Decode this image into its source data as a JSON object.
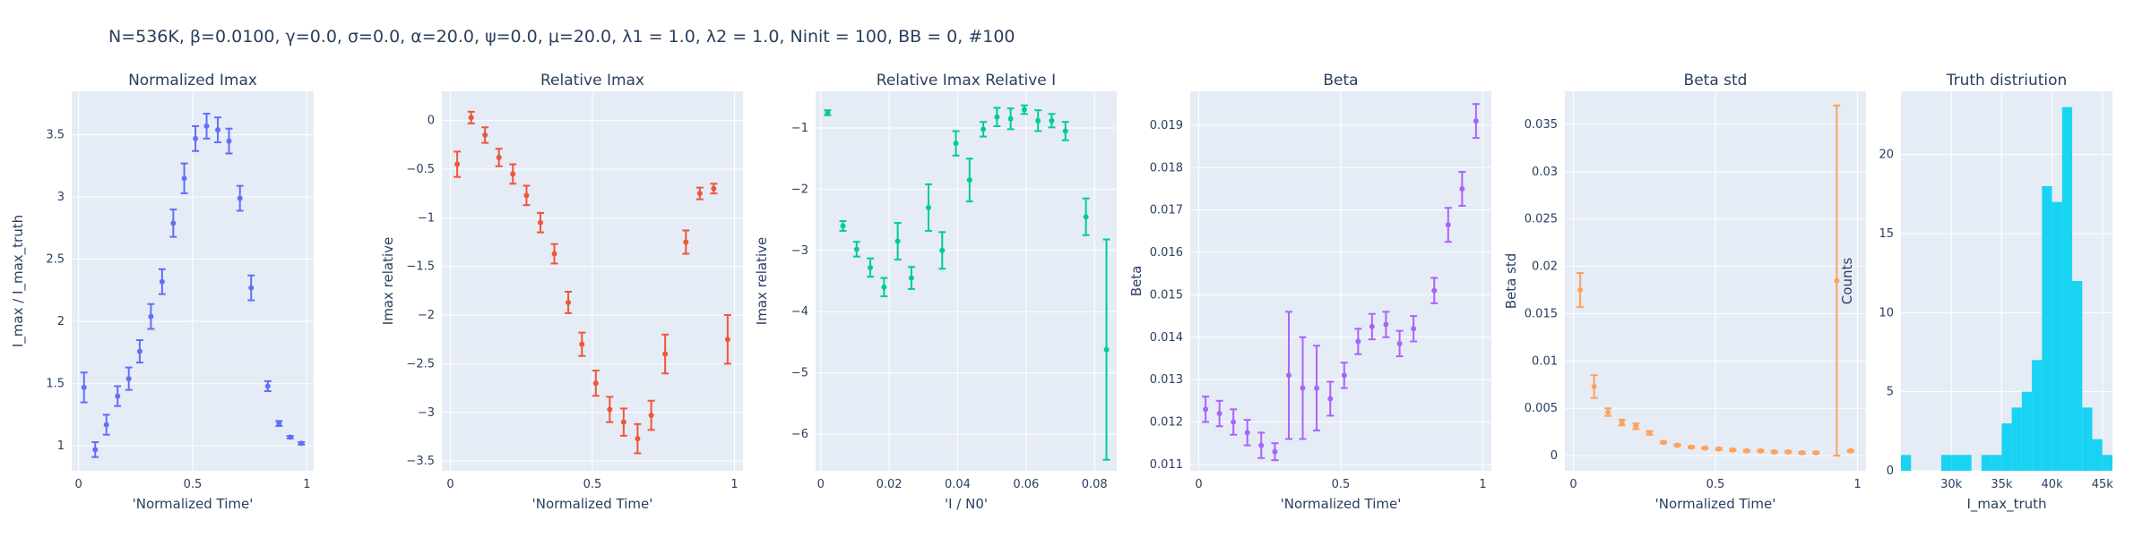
{
  "title": "N=536K, β=0.0100, γ=0.0, σ=0.0,  α=20.0, ψ=0.0, μ=20.0, λ1 = 1.0, λ2 = 1.0, Ninit = 100, BB = 0, #100",
  "chart_data": [
    {
      "type": "scatter",
      "title": "Normalized Imax",
      "xlabel": "'Normalized Time'",
      "ylabel": "I_max / I_max_truth",
      "xlim": [
        -0.03,
        1.03
      ],
      "ylim": [
        0.8,
        3.85
      ],
      "xticks": [
        0,
        0.5,
        1
      ],
      "xticklabels": [
        "0",
        "0.5",
        "1"
      ],
      "yticks": [
        1,
        1.5,
        2,
        2.5,
        3,
        3.5
      ],
      "yticklabels": [
        "1",
        "1.5",
        "2",
        "2.5",
        "3",
        "3.5"
      ],
      "color": "#636efa",
      "grid": true,
      "series": [
        {
          "x": [
            0.024,
            0.073,
            0.122,
            0.171,
            0.22,
            0.268,
            0.317,
            0.366,
            0.415,
            0.463,
            0.512,
            0.561,
            0.61,
            0.659,
            0.707,
            0.756,
            0.829,
            0.878,
            0.927,
            0.976
          ],
          "y": [
            1.47,
            0.97,
            1.17,
            1.4,
            1.54,
            1.76,
            2.04,
            2.32,
            2.79,
            3.15,
            3.47,
            3.57,
            3.54,
            3.45,
            2.99,
            2.27,
            1.48,
            1.18,
            1.07,
            1.02
          ],
          "err": [
            0.12,
            0.06,
            0.08,
            0.08,
            0.09,
            0.09,
            0.1,
            0.1,
            0.11,
            0.12,
            0.1,
            0.1,
            0.1,
            0.1,
            0.1,
            0.1,
            0.04,
            0.02,
            0.01,
            0.01
          ]
        }
      ]
    },
    {
      "type": "scatter",
      "title": "Relative Imax",
      "xlabel": "'Normalized Time'",
      "ylabel": "Imax relative",
      "xlim": [
        -0.03,
        1.03
      ],
      "ylim": [
        -3.6,
        0.3
      ],
      "xticks": [
        0,
        0.5,
        1
      ],
      "xticklabels": [
        "0",
        "0.5",
        "1"
      ],
      "yticks": [
        0,
        -0.5,
        -1,
        -1.5,
        -2,
        -2.5,
        -3,
        -3.5
      ],
      "yticklabels": [
        "0",
        "−0.5",
        "−1",
        "−1.5",
        "−2",
        "−2.5",
        "−3",
        "−3.5"
      ],
      "color": "#ef553b",
      "grid": true,
      "series": [
        {
          "x": [
            0.024,
            0.073,
            0.122,
            0.171,
            0.22,
            0.268,
            0.317,
            0.366,
            0.415,
            0.463,
            0.512,
            0.561,
            0.61,
            0.659,
            0.707,
            0.756,
            0.829,
            0.878,
            0.927,
            0.976
          ],
          "y": [
            -0.45,
            0.03,
            -0.15,
            -0.38,
            -0.55,
            -0.77,
            -1.05,
            -1.37,
            -1.87,
            -2.3,
            -2.7,
            -2.97,
            -3.1,
            -3.27,
            -3.03,
            -2.4,
            -1.25,
            -0.75,
            -0.7,
            -2.25
          ],
          "err": [
            0.13,
            0.06,
            0.08,
            0.09,
            0.1,
            0.1,
            0.1,
            0.1,
            0.11,
            0.12,
            0.13,
            0.13,
            0.14,
            0.15,
            0.15,
            0.2,
            0.12,
            0.06,
            0.05,
            0.25
          ]
        }
      ]
    },
    {
      "type": "scatter",
      "title": "Relative Imax Relative I",
      "xlabel": "'I / N0'",
      "ylabel": "Imax relative",
      "xlim": [
        -0.0015,
        0.0865
      ],
      "ylim": [
        -6.6,
        -0.4
      ],
      "xticks": [
        0,
        0.02,
        0.04,
        0.06,
        0.08
      ],
      "xticklabels": [
        "0",
        "0.02",
        "0.04",
        "0.06",
        "0.08"
      ],
      "yticks": [
        -1,
        -2,
        -3,
        -4,
        -5,
        -6
      ],
      "yticklabels": [
        "−1",
        "−2",
        "−3",
        "−4",
        "−5",
        "−6"
      ],
      "color": "#00cc96",
      "grid": true,
      "series": [
        {
          "x": [
            0.002,
            0.0065,
            0.0105,
            0.0145,
            0.0185,
            0.0225,
            0.0265,
            0.0315,
            0.0355,
            0.0395,
            0.0435,
            0.0475,
            0.0515,
            0.0555,
            0.0595,
            0.0635,
            0.0675,
            0.0715,
            0.0775,
            0.0835
          ],
          "y": [
            -0.75,
            -2.6,
            -2.98,
            -3.28,
            -3.6,
            -2.85,
            -3.45,
            -2.3,
            -3.0,
            -1.25,
            -1.85,
            -1.02,
            -0.82,
            -0.85,
            -0.7,
            -0.88,
            -0.88,
            -1.05,
            -2.45,
            -4.62
          ],
          "err": [
            0.04,
            0.08,
            0.12,
            0.15,
            0.15,
            0.3,
            0.18,
            0.38,
            0.3,
            0.2,
            0.35,
            0.12,
            0.15,
            0.17,
            0.07,
            0.17,
            0.11,
            0.15,
            0.3,
            1.8
          ]
        }
      ]
    },
    {
      "type": "scatter",
      "title": "Beta",
      "xlabel": "'Normalized Time'",
      "ylabel": "Beta",
      "xlim": [
        -0.03,
        1.03
      ],
      "ylim": [
        0.01085,
        0.0198
      ],
      "xticks": [
        0,
        0.5,
        1
      ],
      "xticklabels": [
        "0",
        "0.5",
        "1"
      ],
      "yticks": [
        0.011,
        0.012,
        0.013,
        0.014,
        0.015,
        0.016,
        0.017,
        0.018,
        0.019
      ],
      "yticklabels": [
        "0.011",
        "0.012",
        "0.013",
        "0.014",
        "0.015",
        "0.016",
        "0.017",
        "0.018",
        "0.019"
      ],
      "color": "#ab63fa",
      "grid": true,
      "series": [
        {
          "x": [
            0.024,
            0.073,
            0.122,
            0.171,
            0.22,
            0.268,
            0.317,
            0.366,
            0.415,
            0.463,
            0.512,
            0.561,
            0.61,
            0.659,
            0.707,
            0.756,
            0.829,
            0.878,
            0.927,
            0.976
          ],
          "y": [
            0.0123,
            0.0122,
            0.012,
            0.01175,
            0.01145,
            0.0113,
            0.0131,
            0.0128,
            0.0128,
            0.01255,
            0.0131,
            0.0139,
            0.01425,
            0.0143,
            0.01385,
            0.0142,
            0.0151,
            0.01665,
            0.0175,
            0.0191
          ],
          "err": [
            0.0003,
            0.0003,
            0.0003,
            0.0003,
            0.0003,
            0.0002,
            0.0015,
            0.0012,
            0.001,
            0.0004,
            0.0003,
            0.0003,
            0.0003,
            0.0003,
            0.0003,
            0.0003,
            0.0003,
            0.0004,
            0.0004,
            0.0004
          ]
        }
      ]
    },
    {
      "type": "scatter",
      "title": "Beta std",
      "xlabel": "'Normalized Time'",
      "ylabel": "Beta std",
      "xlim": [
        -0.03,
        1.03
      ],
      "ylim": [
        -0.0016,
        0.0385
      ],
      "xticks": [
        0,
        0.5,
        1
      ],
      "xticklabels": [
        "0",
        "0.5",
        "1"
      ],
      "yticks": [
        0,
        0.005,
        0.01,
        0.015,
        0.02,
        0.025,
        0.03,
        0.035
      ],
      "yticklabels": [
        "0",
        "0.005",
        "0.01",
        "0.015",
        "0.02",
        "0.025",
        "0.03",
        "0.035"
      ],
      "color": "#ffa15a",
      "grid": true,
      "series": [
        {
          "x": [
            0.024,
            0.073,
            0.122,
            0.171,
            0.22,
            0.268,
            0.317,
            0.366,
            0.415,
            0.463,
            0.512,
            0.561,
            0.61,
            0.659,
            0.707,
            0.756,
            0.805,
            0.854,
            0.927,
            0.976
          ],
          "y": [
            0.0175,
            0.0073,
            0.0046,
            0.0035,
            0.0031,
            0.0024,
            0.0014,
            0.0011,
            0.0009,
            0.0008,
            0.0007,
            0.0006,
            0.0005,
            0.0005,
            0.0004,
            0.0004,
            0.0003,
            0.0003,
            0.0185,
            0.0005
          ],
          "err": [
            0.0018,
            0.0012,
            0.0004,
            0.0003,
            0.0003,
            0.0002,
            0.0001,
            0.0001,
            0.0001,
            0.0001,
            0.0001,
            0.0001,
            0.0001,
            0.0001,
            0.0001,
            0.0001,
            0.0001,
            0.0001,
            0.0185,
            0.0001
          ]
        }
      ]
    },
    {
      "type": "bar",
      "title": "Truth distriution",
      "xlabel": "I_max_truth",
      "ylabel": "Counts",
      "xlim": [
        25000,
        46000
      ],
      "ylim": [
        0,
        24
      ],
      "xticks": [
        30000,
        35000,
        40000,
        45000
      ],
      "xticklabels": [
        "30k",
        "35k",
        "40k",
        "45k"
      ],
      "yticks": [
        0,
        5,
        10,
        15,
        20
      ],
      "yticklabels": [
        "0",
        "5",
        "10",
        "15",
        "20"
      ],
      "color": "#19d3f3",
      "grid": true,
      "bin_width": 1000,
      "bins": [
        25000,
        26000,
        27000,
        28000,
        29000,
        30000,
        31000,
        32000,
        33000,
        34000,
        35000,
        36000,
        37000,
        38000,
        39000,
        40000,
        41000,
        42000,
        43000,
        44000,
        45000
      ],
      "values": [
        1,
        0,
        0,
        0,
        1,
        1,
        1,
        0,
        1,
        1,
        3,
        4,
        5,
        7,
        18,
        17,
        23,
        12,
        4,
        2,
        1
      ]
    }
  ]
}
